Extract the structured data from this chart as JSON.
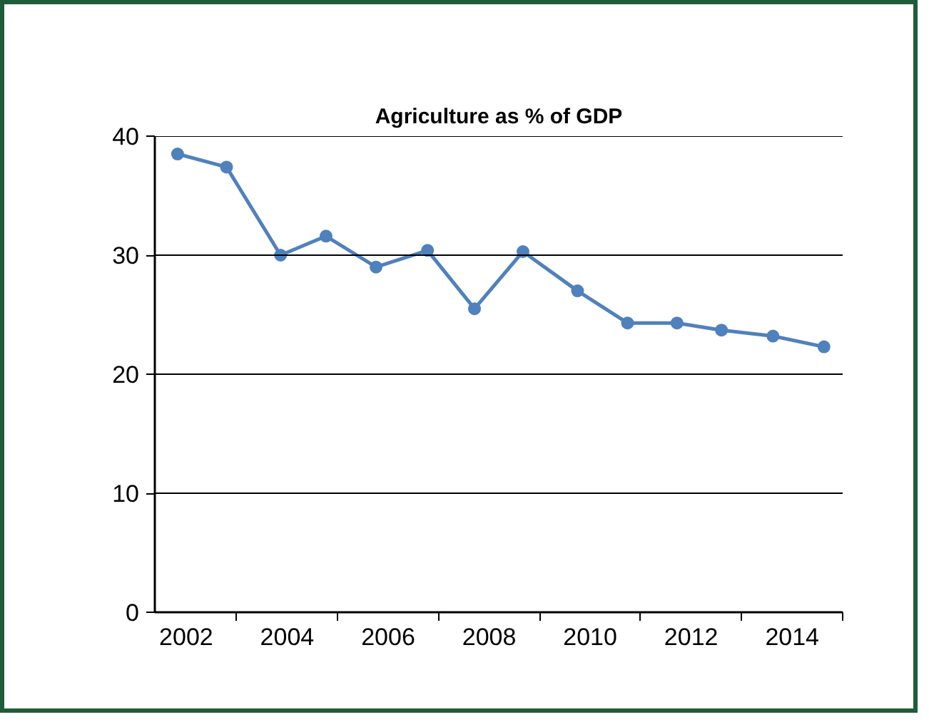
{
  "chart_data": {
    "type": "line",
    "title": "Agriculture as % of GDP",
    "x": [
      2001.83,
      2002.8,
      2003.87,
      2004.77,
      2005.76,
      2006.78,
      2007.71,
      2008.67,
      2009.75,
      2010.74,
      2011.72,
      2012.6,
      2013.62,
      2014.63
    ],
    "series": [
      {
        "color": "#4f81bd",
        "values": [
          38.5,
          37.4,
          30.0,
          31.6,
          29.0,
          30.4,
          25.5,
          30.3,
          27.0,
          24.3,
          24.3,
          23.7,
          23.2,
          22.3
        ]
      }
    ],
    "xlim": [
      2001.38,
      2015
    ],
    "xticks": [
      2002,
      2004,
      2006,
      2008,
      2010,
      2012,
      2014,
      {
        "value": 2003,
        "label": null
      },
      {
        "value": 2005,
        "label": null
      },
      {
        "value": 2007,
        "label": null
      },
      {
        "value": 2009,
        "label": null
      },
      {
        "value": 2011,
        "label": null
      },
      {
        "value": 2013,
        "label": null
      },
      {
        "value": 2015,
        "label": null
      }
    ],
    "ylim": [
      0,
      40
    ],
    "yticks": [
      0,
      10,
      20,
      30,
      40
    ],
    "grid": "y",
    "marker": "circle",
    "line_style": "solid"
  }
}
